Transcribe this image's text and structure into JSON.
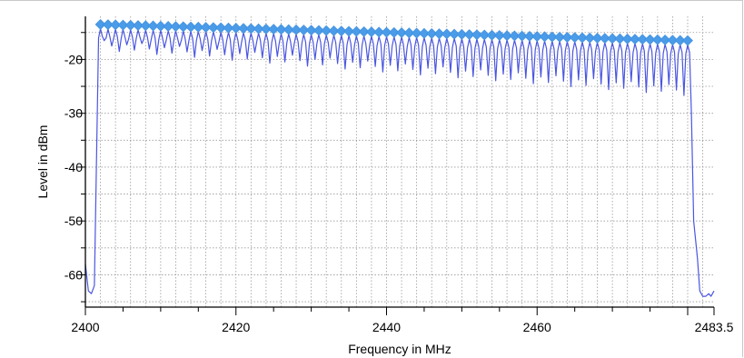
{
  "chart_data": {
    "type": "line",
    "xlabel": "Frequency in MHz",
    "ylabel": "Level in dBm",
    "xlim": [
      2400,
      2483.5
    ],
    "ylim": [
      -66,
      -12
    ],
    "xticks": [
      2400,
      2420,
      2440,
      2460,
      2483.5
    ],
    "xtick_labels": [
      "2400",
      "2420",
      "2440",
      "2460",
      "2483.5"
    ],
    "yticks": [
      -20,
      -30,
      -40,
      -50,
      -60
    ],
    "ytick_labels": [
      "-20",
      "-30",
      "-40",
      "-50",
      "-60"
    ],
    "grid": true,
    "channels": {
      "count": 79,
      "first_mhz": 2402,
      "step_mhz": 1,
      "peak_dbm_first": -13.5,
      "peak_dbm_last": -16.5
    },
    "series": [
      {
        "values": {
          "noise_left_dbm": [
            -58,
            -63,
            -63.5,
            -62
          ],
          "noise_right_dbm": [
            -63,
            -64,
            -64,
            -63.5,
            -64,
            -63
          ]
        }
      }
    ],
    "peak_markers": {
      "shape": "diamond"
    },
    "colors": {
      "trace": "#4a56e0",
      "marker": "#4a9be8",
      "grid": "#9a9a9a",
      "axis": "#000000"
    }
  }
}
